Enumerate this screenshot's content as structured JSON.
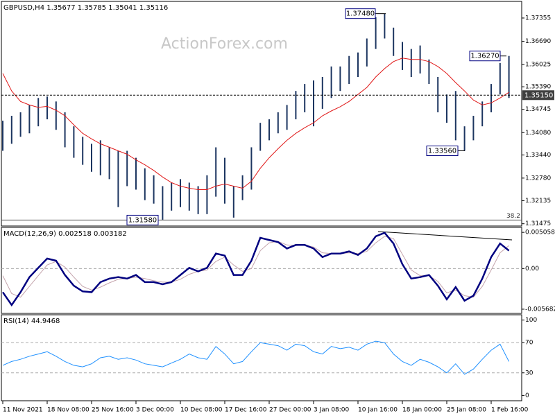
{
  "chart_data": [
    {
      "type": "ohlc",
      "title": "GBPUSD,H4 1.35677 1.35785 1.35041 1.35116",
      "watermark": "ActionForex.com",
      "categories": [
        "11 Nov 2021",
        null,
        null,
        null,
        null,
        "18 Nov 08:00",
        null,
        null,
        null,
        null,
        "25 Nov 16:00",
        null,
        null,
        null,
        null,
        "3 Dec 00:00",
        null,
        null,
        null,
        null,
        "10 Dec 08:00",
        null,
        null,
        null,
        null,
        "17 Dec 16:00",
        null,
        null,
        null,
        null,
        "27 Dec 00:00",
        null,
        null,
        null,
        null,
        "3 Jan 08:00",
        null,
        null,
        null,
        null,
        "10 Jan 16:00",
        null,
        null,
        null,
        null,
        "18 Jan 00:00",
        null,
        null,
        null,
        null,
        "25 Jan 08:00",
        null,
        null,
        null,
        null,
        "1 Feb 16:00",
        null,
        null
      ],
      "high": [
        1.3442,
        1.3456,
        1.3466,
        1.3487,
        1.3507,
        1.3511,
        1.3497,
        1.3466,
        1.3426,
        1.3396,
        1.3376,
        1.3386,
        1.3366,
        1.3356,
        1.3356,
        1.3336,
        1.3306,
        1.3286,
        1.3255,
        1.3265,
        1.3275,
        1.3265,
        1.3255,
        1.3286,
        1.3366,
        1.3336,
        1.3255,
        1.3286,
        1.3366,
        1.3436,
        1.3446,
        1.3466,
        1.3487,
        1.3527,
        1.3547,
        1.3557,
        1.3567,
        1.3597,
        1.3597,
        1.3627,
        1.3637,
        1.3677,
        1.3738,
        1.3748,
        1.3708,
        1.3667,
        1.3647,
        1.3657,
        1.3617,
        1.3567,
        1.3517,
        1.3527,
        1.3426,
        1.3456,
        1.3497,
        1.3547,
        1.3607,
        1.3627
      ],
      "low": [
        1.3356,
        1.3376,
        1.3396,
        1.3406,
        1.3426,
        1.3446,
        1.3416,
        1.3366,
        1.3336,
        1.3316,
        1.3296,
        1.3286,
        1.3275,
        1.3195,
        1.3255,
        1.3245,
        1.3215,
        1.3205,
        1.3159,
        1.3185,
        1.3195,
        1.3185,
        1.3175,
        1.3175,
        1.3225,
        1.3205,
        1.3165,
        1.3215,
        1.3245,
        1.3356,
        1.3386,
        1.3406,
        1.3416,
        1.3446,
        1.3466,
        1.3426,
        1.3476,
        1.3507,
        1.3527,
        1.3547,
        1.3567,
        1.3597,
        1.3647,
        1.3677,
        1.3627,
        1.3587,
        1.3567,
        1.3577,
        1.3547,
        1.3466,
        1.3436,
        1.3386,
        1.3356,
        1.3386,
        1.3426,
        1.3466,
        1.3517,
        1.3507
      ],
      "color": "#1c3560",
      "ma_values": [
        1.3577,
        1.3527,
        1.3497,
        1.3487,
        1.348,
        1.3483,
        1.3472,
        1.3456,
        1.343,
        1.3406,
        1.339,
        1.3376,
        1.3366,
        1.3356,
        1.3346,
        1.333,
        1.3316,
        1.33,
        1.3281,
        1.3265,
        1.3255,
        1.3249,
        1.3245,
        1.3245,
        1.3255,
        1.3261,
        1.3255,
        1.3249,
        1.3269,
        1.3306,
        1.3336,
        1.3362,
        1.3386,
        1.3406,
        1.3422,
        1.3436,
        1.3456,
        1.347,
        1.3482,
        1.3497,
        1.3517,
        1.3537,
        1.3567,
        1.3591,
        1.3611,
        1.3621,
        1.3617,
        1.3617,
        1.3611,
        1.3597,
        1.3577,
        1.3551,
        1.3527,
        1.3501,
        1.3487,
        1.3493,
        1.3507,
        1.3523
      ],
      "ma_color": "#e01818",
      "ylim": [
        1.3141,
        1.3783
      ],
      "yticks": [
        1.37355,
        {
          "value": 1.3669,
          "label": "1.36690"
        },
        1.36025,
        {
          "value": 1.3539,
          "label": "1.35390"
        },
        1.34745,
        {
          "value": 1.3408,
          "label": "1.34080"
        },
        {
          "value": 1.3344,
          "label": "1.33440"
        },
        {
          "value": 1.3278,
          "label": "1.32780"
        },
        1.32135,
        1.31475
      ],
      "annotations": [
        {
          "value": 1.3748,
          "label": "1.37480"
        },
        {
          "value": 1.3627,
          "label": "1.36270"
        },
        {
          "value": 1.3356,
          "label": "1.33560"
        },
        {
          "value": 1.3158,
          "label": "1.31580"
        }
      ],
      "current_price": {
        "value": 1.3515,
        "label": "1.35150"
      },
      "fib_level": {
        "value": 1.3158,
        "label": "38.2"
      }
    },
    {
      "type": "macd",
      "title": "MACD(12,26,9) 0.002518 0.003182",
      "macd_values": [
        -0.0033,
        -0.0051,
        -0.0033,
        -0.0012,
        0.0001,
        0.0014,
        0.0011,
        -0.0009,
        -0.0024,
        -0.0032,
        -0.0033,
        -0.0019,
        -0.0014,
        -0.0012,
        -0.0014,
        -0.0009,
        -0.0019,
        -0.0019,
        -0.0022,
        -0.0019,
        -0.0009,
        0.0001,
        -0.0004,
        0.0001,
        0.0021,
        0.0018,
        -0.0009,
        -0.0009,
        0.0011,
        0.0043,
        0.004,
        0.0037,
        0.0028,
        0.0033,
        0.0033,
        0.0028,
        0.0016,
        0.0021,
        0.0021,
        0.0024,
        0.0019,
        0.0028,
        0.0045,
        0.005,
        0.0035,
        0.0006,
        -0.0014,
        -0.0012,
        -0.0009,
        -0.0024,
        -0.0043,
        -0.0026,
        -0.0045,
        -0.0038,
        -0.0014,
        0.0016,
        0.0035,
        0.0025
      ],
      "macd_color": "#000080",
      "signal_values": [
        -0.001,
        -0.0035,
        -0.004,
        -0.0025,
        -0.001,
        0.0005,
        0.001,
        0.0002,
        -0.0012,
        -0.0025,
        -0.003,
        -0.0026,
        -0.002,
        -0.0015,
        -0.0014,
        -0.0012,
        -0.0014,
        -0.0017,
        -0.0019,
        -0.0019,
        -0.0015,
        -0.0008,
        -0.0004,
        -0.0002,
        0.001,
        0.0016,
        0.0005,
        -0.0004,
        0.0,
        0.0025,
        0.0036,
        0.0038,
        0.0033,
        0.0032,
        0.0033,
        0.003,
        0.0022,
        0.0021,
        0.0021,
        0.0022,
        0.0021,
        0.0024,
        0.0036,
        0.0045,
        0.0042,
        0.002,
        -0.0002,
        -0.001,
        -0.001,
        -0.0018,
        -0.0034,
        -0.003,
        -0.0038,
        -0.004,
        -0.0025,
        -0.0002,
        0.0022,
        0.0032
      ],
      "signal_color": "#c4a4ac",
      "ylim": [
        -0.00627,
        0.00575
      ],
      "yticks": [
        0.005058,
        {
          "value": 0,
          "label": "0.00"
        },
        -0.005682
      ],
      "levels": [
        0
      ]
    },
    {
      "type": "rsi",
      "title": "RSI(14) 44.9468",
      "values": [
        40,
        45,
        48,
        52,
        55,
        58,
        52,
        45,
        40,
        38,
        42,
        50,
        52,
        48,
        50,
        47,
        42,
        40,
        38,
        43,
        48,
        55,
        50,
        48,
        65,
        55,
        42,
        45,
        58,
        70,
        68,
        66,
        60,
        68,
        66,
        58,
        55,
        65,
        62,
        64,
        60,
        68,
        72,
        70,
        55,
        45,
        40,
        48,
        44,
        38,
        30,
        42,
        28,
        35,
        48,
        60,
        68,
        45
      ],
      "color": "#1e90ff",
      "ylim": [
        -7,
        107
      ],
      "yticks": [
        0,
        30,
        70,
        100
      ],
      "levels": [
        30,
        70
      ]
    }
  ]
}
